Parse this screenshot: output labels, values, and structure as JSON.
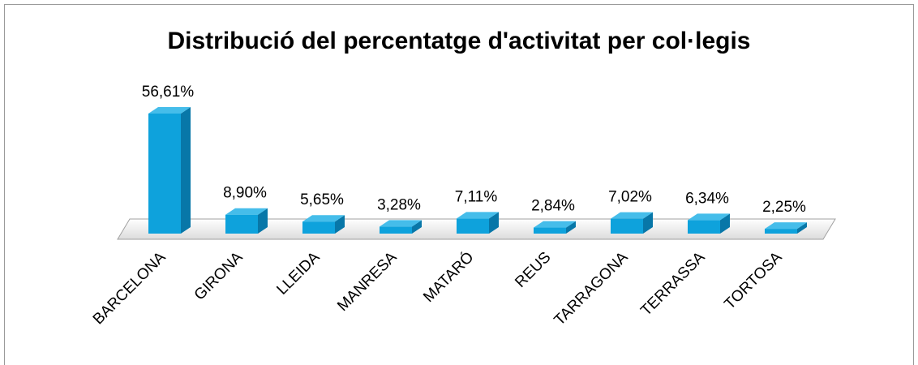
{
  "chart_data": {
    "type": "bar3d",
    "title": "Distribució del percentatge d'activitat per col·legis",
    "categories": [
      "BARCELONA",
      "GIRONA",
      "LLEIDA",
      "MANRESA",
      "MATARÓ",
      "REUS",
      "TARRAGONA",
      "TERRASSA",
      "TORTOSA"
    ],
    "values": [
      56.61,
      8.9,
      5.65,
      3.28,
      7.11,
      2.84,
      7.02,
      6.34,
      2.25
    ],
    "value_labels": [
      "56,61%",
      "8,90%",
      "5,65%",
      "3,28%",
      "7,11%",
      "2,84%",
      "7,02%",
      "6,34%",
      "2,25%"
    ],
    "color": "#0ea2dc"
  }
}
